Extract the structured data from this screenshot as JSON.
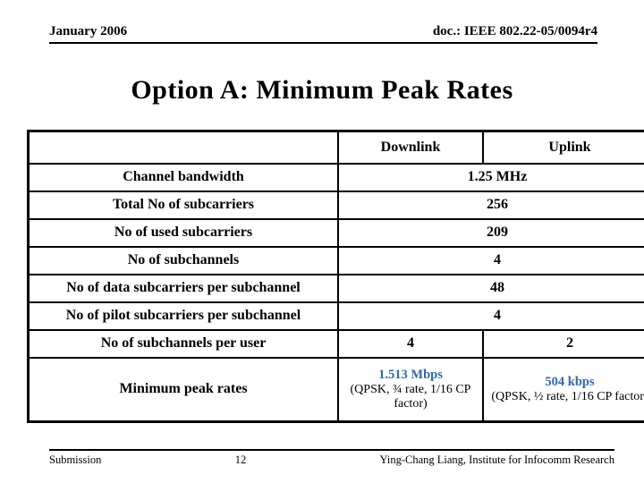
{
  "slide": {
    "header": {
      "date_label": "January 2006",
      "doc_label": "doc.: IEEE 802.22-05/0094r4"
    },
    "title": "Option A: Minimum Peak Rates",
    "table": {
      "column_headers": {
        "corner": "",
        "downlink": "Downlink",
        "uplink": "Uplink"
      },
      "rows": [
        {
          "label": "Channel bandwidth",
          "value": "1.25 MHz"
        },
        {
          "label": "Total No of subcarriers",
          "value": "256"
        },
        {
          "label": "No of used subcarriers",
          "value": "209"
        },
        {
          "label": "No of subchannels",
          "value": "4"
        },
        {
          "label": "No of data subcarriers per subchannel",
          "value": "48"
        },
        {
          "label": "No of pilot subcarriers per subchannel",
          "value": "4"
        },
        {
          "label": "No of subchannels per user",
          "downlink": "4",
          "uplink": "2"
        },
        {
          "label": "Minimum peak rates",
          "downlink_rate": "1.513 Mbps",
          "downlink_detail": "(QPSK, ¾ rate, 1/16 CP factor)",
          "uplink_rate": "504 kbps",
          "uplink_detail": "(QPSK, ½ rate, 1/16 CP factor)"
        }
      ]
    },
    "footer": {
      "left": "Submission",
      "page_number": "12",
      "right": "Ying-Chang Liang, Institute for Infocomm Research"
    },
    "colors": {
      "rate_value_blue": "#3366ad",
      "text": "#000000",
      "border": "#000000",
      "background": "#ffffff"
    }
  }
}
